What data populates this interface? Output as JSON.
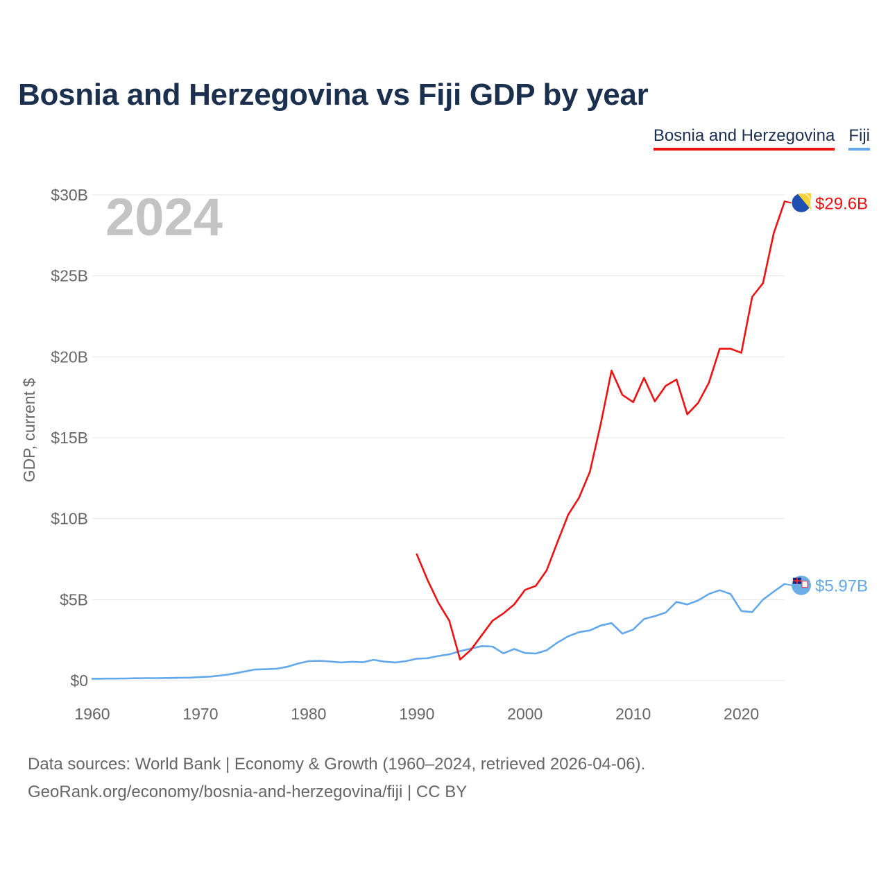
{
  "colors": {
    "bosnia": "#ee1111",
    "fiji": "#62a8ea",
    "title": "#1b2f4e",
    "grid": "#e4e4e4",
    "axis_text": "#666666",
    "year_watermark": "#c4c4c4"
  },
  "chart_data": {
    "type": "line",
    "title": "Bosnia and Herzegovina vs Fiji GDP by year",
    "current_year_label": "2024",
    "xlabel": "",
    "ylabel": "GDP, current $",
    "xlim": [
      1960,
      2024
    ],
    "ylim": [
      0,
      30
    ],
    "x_ticks": [
      1960,
      1970,
      1980,
      1990,
      2000,
      2010,
      2020
    ],
    "y_ticks": [
      {
        "value": 0,
        "label": "$0"
      },
      {
        "value": 5,
        "label": "$5B"
      },
      {
        "value": 10,
        "label": "$10B"
      },
      {
        "value": 15,
        "label": "$15B"
      },
      {
        "value": 20,
        "label": "$20B"
      },
      {
        "value": 25,
        "label": "$25B"
      },
      {
        "value": 30,
        "label": "$30B"
      }
    ],
    "legend_position": "top-right",
    "series": [
      {
        "name": "Bosnia and Herzegovina",
        "color": "#ee1111",
        "end_label": "$29.6B",
        "flag_icon": "bosnia-flag-icon",
        "x": [
          1990,
          1991,
          1992,
          1993,
          1994,
          1995,
          1996,
          1997,
          1998,
          1999,
          2000,
          2001,
          2002,
          2003,
          2004,
          2005,
          2006,
          2007,
          2008,
          2009,
          2010,
          2011,
          2012,
          2013,
          2014,
          2015,
          2016,
          2017,
          2018,
          2019,
          2020,
          2021,
          2022,
          2023,
          2024
        ],
        "values": [
          7.8,
          6.2,
          4.8,
          3.7,
          1.3,
          1.9,
          2.8,
          3.7,
          4.15,
          4.7,
          5.6,
          5.85,
          6.8,
          8.55,
          10.25,
          11.3,
          12.9,
          15.85,
          19.15,
          17.65,
          17.2,
          18.7,
          17.25,
          18.2,
          18.6,
          16.45,
          17.15,
          18.4,
          20.5,
          20.5,
          20.25,
          23.7,
          24.55,
          27.65,
          29.6
        ]
      },
      {
        "name": "Fiji",
        "color": "#62a8ea",
        "end_label": "$5.97B",
        "flag_icon": "fiji-flag-icon",
        "x": [
          1960,
          1961,
          1962,
          1963,
          1964,
          1965,
          1966,
          1967,
          1968,
          1969,
          1970,
          1971,
          1972,
          1973,
          1974,
          1975,
          1976,
          1977,
          1978,
          1979,
          1980,
          1981,
          1982,
          1983,
          1984,
          1985,
          1986,
          1987,
          1988,
          1989,
          1990,
          1991,
          1992,
          1993,
          1994,
          1995,
          1996,
          1997,
          1998,
          1999,
          2000,
          2001,
          2002,
          2003,
          2004,
          2005,
          2006,
          2007,
          2008,
          2009,
          2010,
          2011,
          2012,
          2013,
          2014,
          2015,
          2016,
          2017,
          2018,
          2019,
          2020,
          2021,
          2022,
          2023,
          2024
        ],
        "values": [
          0.11,
          0.12,
          0.12,
          0.13,
          0.14,
          0.15,
          0.15,
          0.16,
          0.17,
          0.18,
          0.22,
          0.25,
          0.32,
          0.42,
          0.55,
          0.68,
          0.7,
          0.73,
          0.85,
          1.05,
          1.2,
          1.22,
          1.18,
          1.12,
          1.16,
          1.13,
          1.28,
          1.17,
          1.12,
          1.2,
          1.35,
          1.38,
          1.52,
          1.62,
          1.82,
          1.97,
          2.13,
          2.1,
          1.68,
          1.95,
          1.7,
          1.67,
          1.87,
          2.35,
          2.74,
          2.99,
          3.1,
          3.4,
          3.55,
          2.9,
          3.15,
          3.8,
          3.98,
          4.2,
          4.86,
          4.7,
          4.95,
          5.35,
          5.58,
          5.35,
          4.3,
          4.23,
          5.0,
          5.5,
          5.97
        ]
      }
    ]
  },
  "legend": {
    "items": [
      {
        "label": "Bosnia and Herzegovina"
      },
      {
        "label": "Fiji"
      }
    ]
  },
  "footer": {
    "line1": "Data sources: World Bank | Economy & Growth (1960–2024, retrieved 2026-04-06).",
    "line2": "GeoRank.org/economy/bosnia-and-herzegovina/fiji | CC BY"
  }
}
